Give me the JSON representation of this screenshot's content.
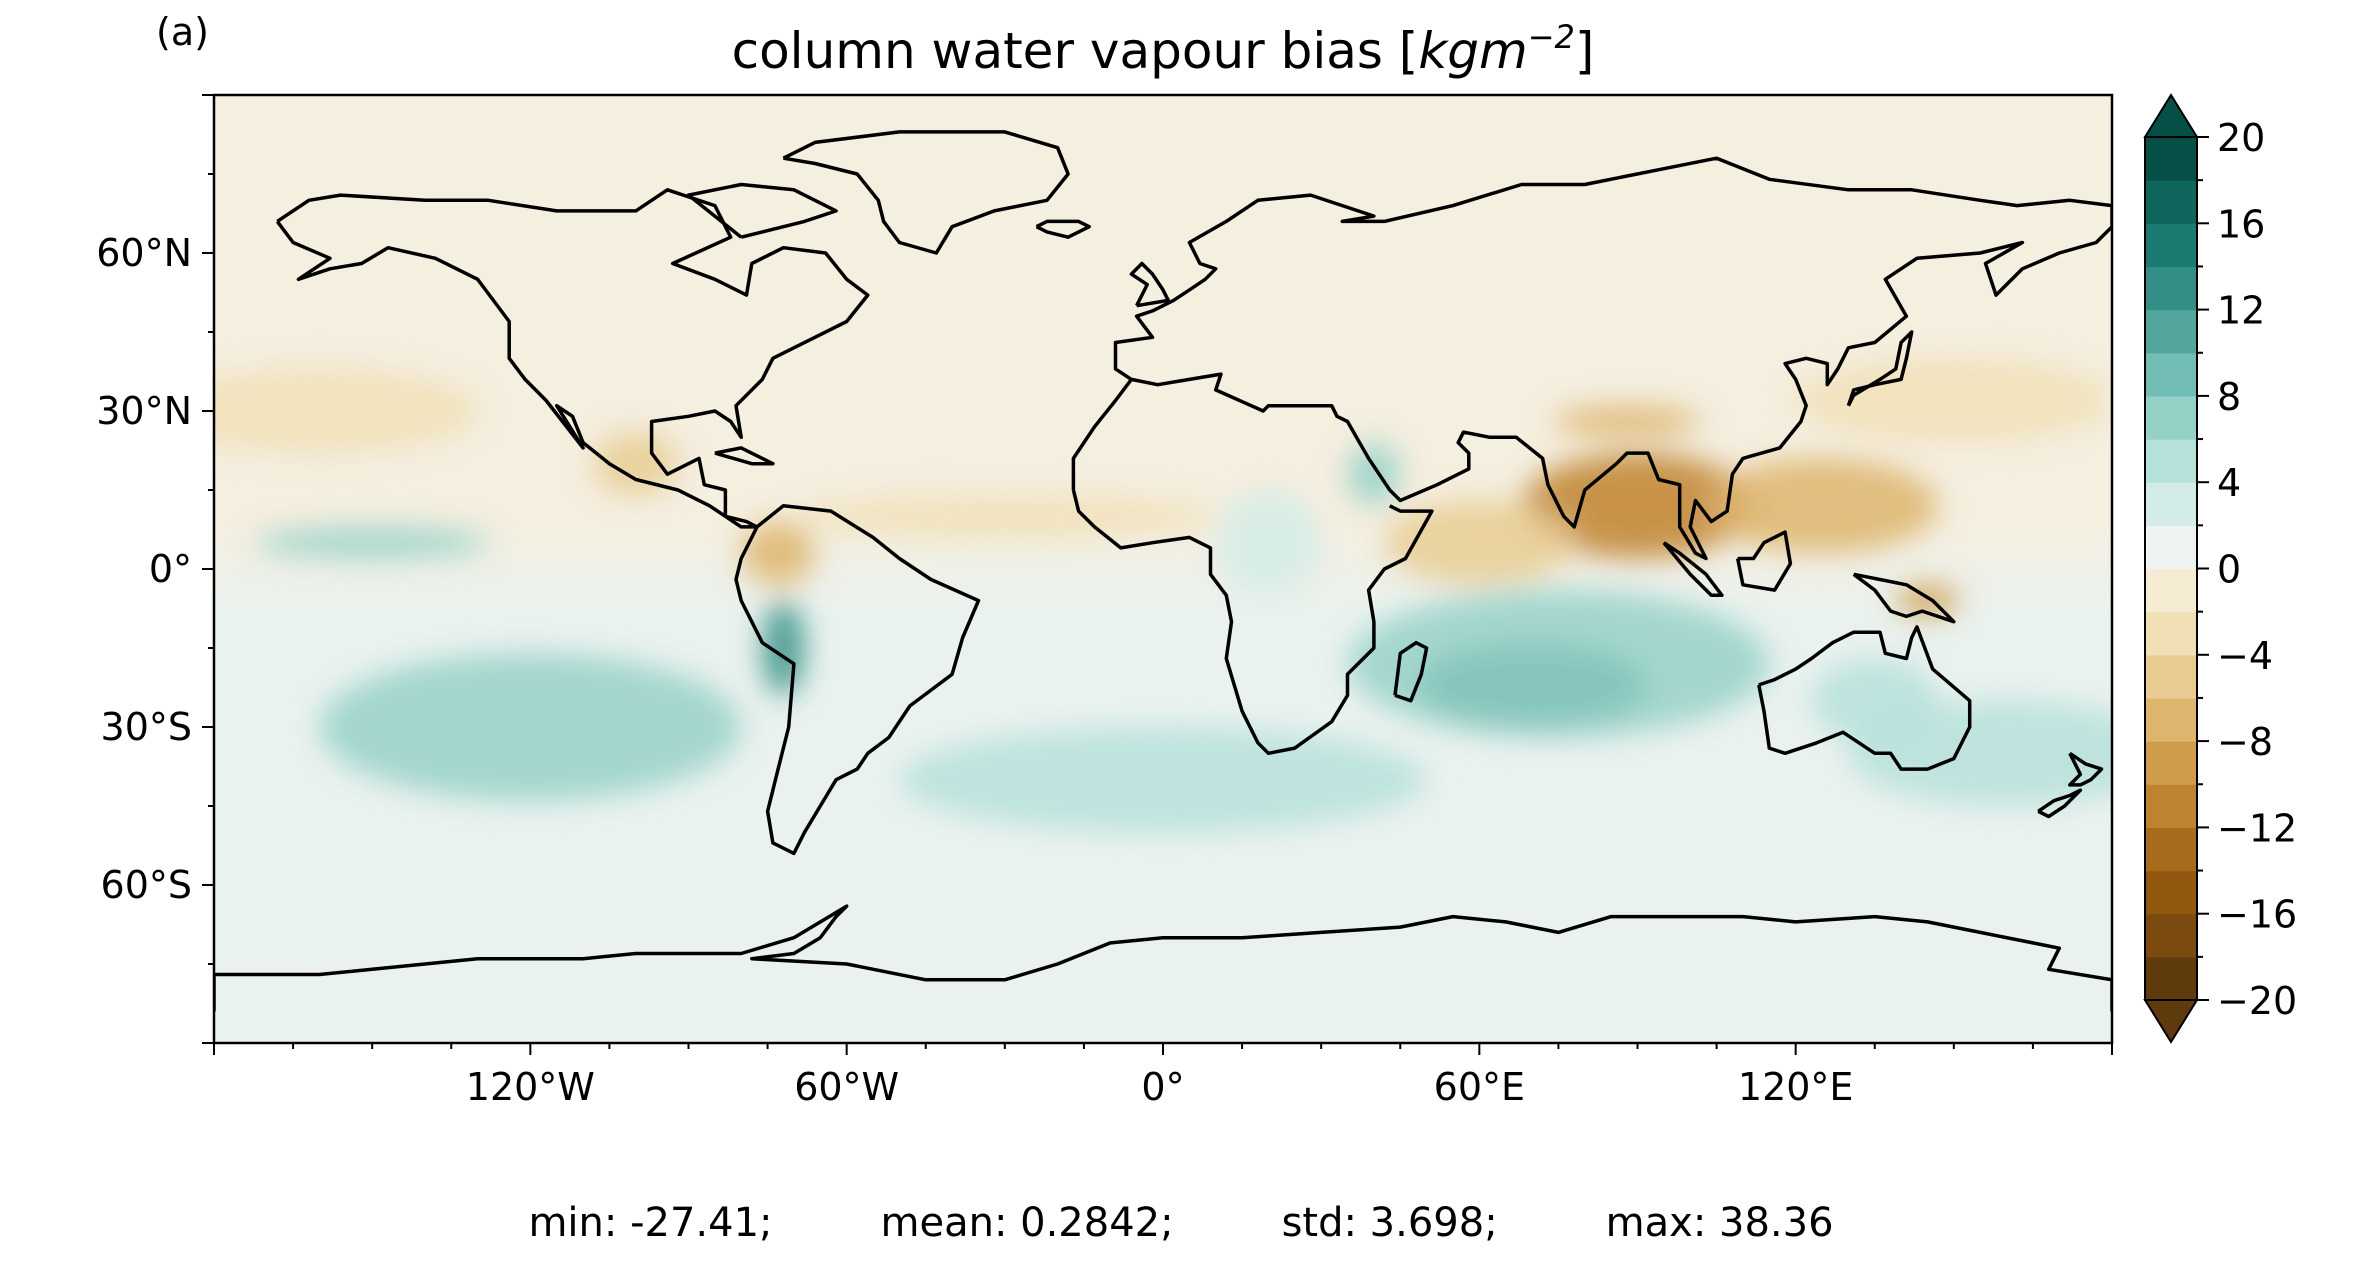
{
  "panel_label": "(a)",
  "title_text": "column water vapour bias [",
  "title_unit_base": "kgm",
  "title_unit_exp": "−2",
  "title_close": "]",
  "colors": {
    "coastline": "#000000",
    "ocean_north": "#f5efe0",
    "ocean_south": "#eaf2ef"
  },
  "chart_data": {
    "type": "heatmap",
    "projection": "plate-carree",
    "x_range": [
      -180,
      180
    ],
    "y_range": [
      -90,
      90
    ],
    "x_ticks": [
      {
        "value": -120,
        "label": "120°W"
      },
      {
        "value": -60,
        "label": "60°W"
      },
      {
        "value": 0,
        "label": "0°"
      },
      {
        "value": 60,
        "label": "60°E"
      },
      {
        "value": 120,
        "label": "120°E"
      }
    ],
    "y_ticks": [
      {
        "value": 60,
        "label": "60°N"
      },
      {
        "value": 30,
        "label": "30°N"
      },
      {
        "value": 0,
        "label": "0°"
      },
      {
        "value": -30,
        "label": "30°S"
      },
      {
        "value": -60,
        "label": "60°S"
      }
    ],
    "colorbar": {
      "min": -20,
      "max": 20,
      "step": 2,
      "extend": "both",
      "labels": [
        {
          "value": 20,
          "label": "20"
        },
        {
          "value": 16,
          "label": "16"
        },
        {
          "value": 12,
          "label": "12"
        },
        {
          "value": 8,
          "label": "8"
        },
        {
          "value": 4,
          "label": "4"
        },
        {
          "value": 0,
          "label": "0"
        },
        {
          "value": -4,
          "label": "−4"
        },
        {
          "value": -8,
          "label": "−8"
        },
        {
          "value": -12,
          "label": "−12"
        },
        {
          "value": -16,
          "label": "−16"
        },
        {
          "value": -20,
          "label": "−20"
        }
      ],
      "colors": [
        "#5e3a0c",
        "#7b4a0e",
        "#93580f",
        "#a86b1d",
        "#bf8230",
        "#cf9c4c",
        "#ddb56d",
        "#e8cc93",
        "#f1dfb6",
        "#f6ebd3",
        "#eef4f2",
        "#d3ece8",
        "#b6e0da",
        "#96d1c8",
        "#73beb4",
        "#52a69c",
        "#338f85",
        "#1c7a70",
        "#0f665c",
        "#064f46"
      ]
    },
    "anomalies": [
      {
        "lon": 90,
        "lat": 12,
        "rlon": 22,
        "rlat": 10,
        "value": -12
      },
      {
        "lon": 125,
        "lat": 12,
        "rlon": 22,
        "rlat": 9,
        "value": -7
      },
      {
        "lon": 60,
        "lat": 5,
        "rlon": 18,
        "rlat": 8,
        "value": -5
      },
      {
        "lon": 88,
        "lat": 28,
        "rlon": 14,
        "rlat": 3,
        "value": -8
      },
      {
        "lon": 145,
        "lat": -6,
        "rlon": 6,
        "rlat": 3,
        "value": -9
      },
      {
        "lon": -73,
        "lat": 3,
        "rlon": 7,
        "rlat": 6,
        "value": -8
      },
      {
        "lon": -100,
        "lat": 20,
        "rlon": 8,
        "rlat": 6,
        "value": -6
      },
      {
        "lon": -30,
        "lat": 10,
        "rlon": 40,
        "rlat": 4,
        "value": -3
      },
      {
        "lon": -160,
        "lat": 30,
        "rlon": 30,
        "rlat": 8,
        "value": -3
      },
      {
        "lon": 150,
        "lat": 32,
        "rlon": 30,
        "rlat": 8,
        "value": -3
      },
      {
        "lon": 70,
        "lat": -22,
        "rlon": 22,
        "rlat": 8,
        "value": 14
      },
      {
        "lon": 75,
        "lat": -18,
        "rlon": 40,
        "rlat": 14,
        "value": 6
      },
      {
        "lon": -72,
        "lat": -15,
        "rlon": 4,
        "rlat": 9,
        "value": 13
      },
      {
        "lon": -120,
        "lat": -30,
        "rlon": 40,
        "rlat": 14,
        "value": 6
      },
      {
        "lon": -150,
        "lat": 5,
        "rlon": 22,
        "rlat": 3,
        "value": 6
      },
      {
        "lon": 160,
        "lat": -35,
        "rlon": 30,
        "rlat": 10,
        "value": 5
      },
      {
        "lon": 0,
        "lat": -40,
        "rlon": 50,
        "rlat": 10,
        "value": 4
      },
      {
        "lon": 20,
        "lat": 5,
        "rlon": 10,
        "rlat": 10,
        "value": 3
      },
      {
        "lon": 40,
        "lat": 18,
        "rlon": 5,
        "rlat": 6,
        "value": 6
      },
      {
        "lon": 135,
        "lat": -25,
        "rlon": 12,
        "rlat": 8,
        "value": 4
      }
    ]
  },
  "stats": {
    "min": "min: -27.41;",
    "mean": "mean: 0.2842;",
    "std": "std: 3.698;",
    "max": "max: 38.36"
  }
}
